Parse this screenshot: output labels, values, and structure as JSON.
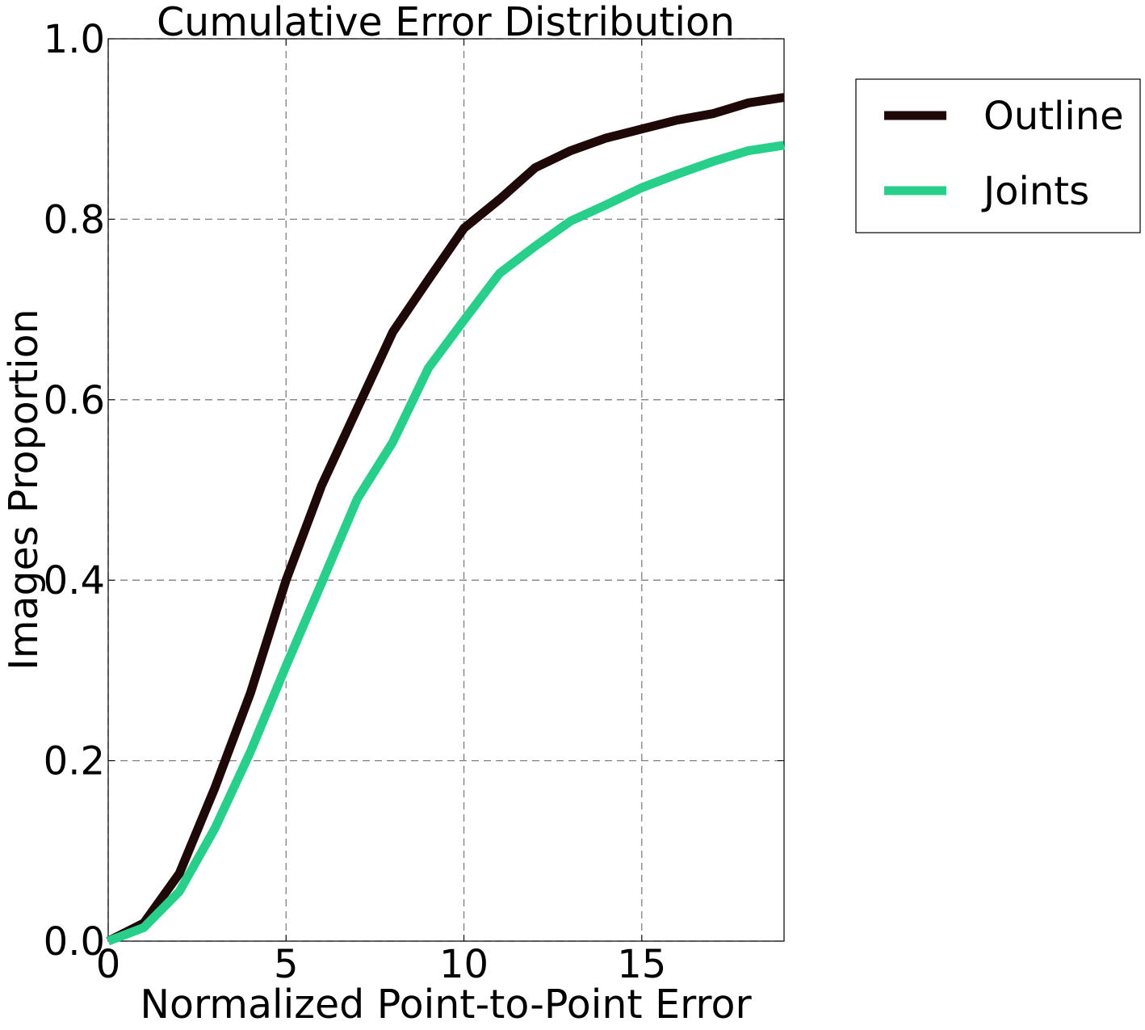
{
  "chart_data": {
    "type": "line",
    "title": "Cumulative Error Distribution",
    "xlabel": "Normalized Point-to-Point Error",
    "ylabel": "Images Proportion",
    "xlim": [
      0,
      19
    ],
    "ylim": [
      0.0,
      1.0
    ],
    "x_ticks": [
      "0",
      "5",
      "10",
      "15"
    ],
    "x_tick_values": [
      0,
      5,
      10,
      15
    ],
    "y_ticks": [
      "0.0",
      "0.2",
      "0.4",
      "0.6",
      "0.8",
      "1.0"
    ],
    "y_tick_values": [
      0.0,
      0.2,
      0.4,
      0.6,
      0.8,
      1.0
    ],
    "grid": true,
    "legend_position": "outside-top-right",
    "x": [
      0,
      1,
      2,
      3,
      4,
      5,
      6,
      7,
      8,
      9,
      10,
      11,
      12,
      13,
      14,
      15,
      16,
      17,
      18,
      19
    ],
    "series": [
      {
        "name": "Outline",
        "color": "#1f0808",
        "values": [
          0.0,
          0.02,
          0.075,
          0.17,
          0.275,
          0.4,
          0.505,
          0.59,
          0.675,
          0.733,
          0.79,
          0.822,
          0.857,
          0.876,
          0.89,
          0.9,
          0.91,
          0.917,
          0.929,
          0.935
        ]
      },
      {
        "name": "Joints",
        "color": "#28cf8a",
        "values": [
          0.0,
          0.015,
          0.055,
          0.125,
          0.21,
          0.305,
          0.397,
          0.49,
          0.553,
          0.635,
          0.688,
          0.74,
          0.77,
          0.798,
          0.816,
          0.835,
          0.85,
          0.864,
          0.876,
          0.882
        ]
      }
    ]
  }
}
